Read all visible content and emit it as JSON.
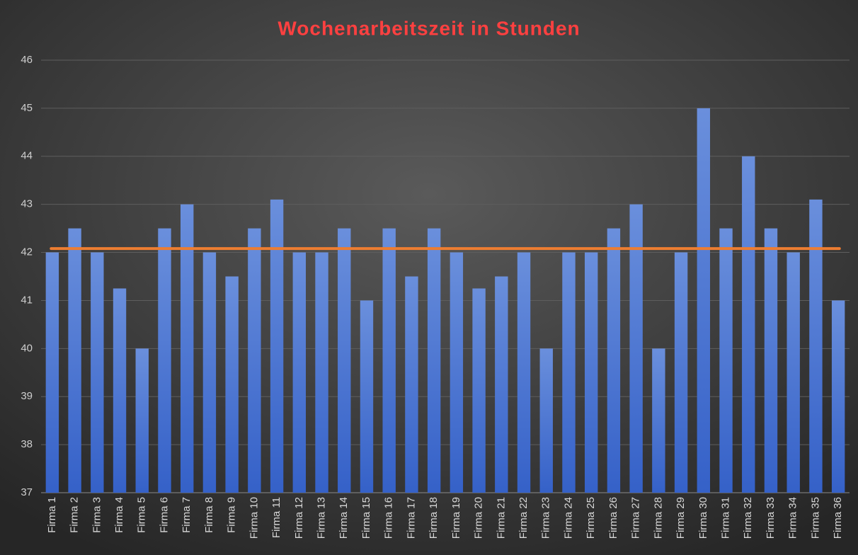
{
  "chart_data": {
    "type": "bar",
    "title": "Wochenarbeitszeit in Stunden",
    "categories": [
      "Firma 1",
      "Firma 2",
      "Firma 3",
      "Firma 4",
      "Firma 5",
      "Firma 6",
      "Firma 7",
      "Firma 8",
      "Firma 9",
      "Firma 10",
      "Firma 11",
      "Firma 12",
      "Firma 13",
      "Firma 14",
      "Firma 15",
      "Firma 16",
      "Firma 17",
      "Firma 18",
      "Firma 19",
      "Firma 20",
      "Firma 21",
      "Firma 22",
      "Firma 23",
      "Firma 24",
      "Firma 25",
      "Firma 26",
      "Firma 27",
      "Firma 28",
      "Firma 29",
      "Firma 30",
      "Firma 31",
      "Firma 32",
      "Firma 33",
      "Firma 34",
      "Firma 35",
      "Firma 36"
    ],
    "values": [
      42,
      42.5,
      42,
      41.25,
      40,
      42.5,
      43,
      42,
      41.5,
      42.5,
      43.1,
      42,
      42,
      42.5,
      41,
      42.5,
      41.5,
      42.5,
      42,
      41.25,
      41.5,
      42,
      40,
      42,
      42,
      42.5,
      43,
      40,
      42,
      45,
      42.5,
      44,
      42.5,
      42,
      43.1,
      41
    ],
    "color": "#4a72d0",
    "mean_line": {
      "value": 42.08,
      "color": "#ed7d31"
    },
    "ylim": [
      37,
      46
    ],
    "yticks": [
      37,
      38,
      39,
      40,
      41,
      42,
      43,
      44,
      45,
      46
    ],
    "grid": true
  }
}
